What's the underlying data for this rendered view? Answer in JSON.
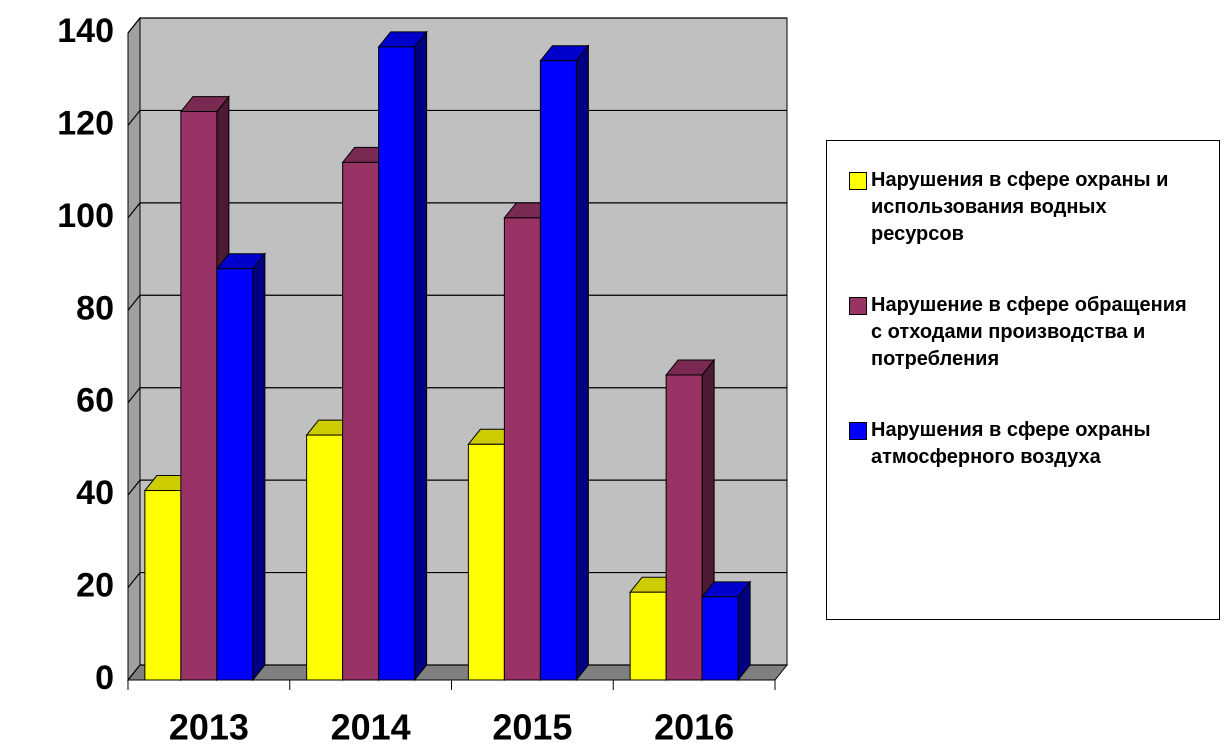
{
  "chart_data": {
    "type": "bar3d",
    "categories": [
      "2013",
      "2014",
      "2015",
      "2016"
    ],
    "series": [
      {
        "name": "Нарушения в сфере охраны и использования водных ресурсов",
        "color": "#ffff00",
        "values": [
          41,
          53,
          51,
          19
        ]
      },
      {
        "name": "Нарушение в сфере обращения с отходами производства и потребления",
        "color": "#993366",
        "values": [
          123,
          112,
          100,
          66
        ]
      },
      {
        "name": "Нарушения в сфере охраны атмосферного воздуха",
        "color": "#0000ff",
        "values": [
          89,
          137,
          134,
          18
        ]
      }
    ],
    "ylim": [
      0,
      140
    ],
    "yticks": [
      0,
      20,
      40,
      60,
      80,
      100,
      120,
      140
    ],
    "grid": true,
    "legend": "right"
  }
}
